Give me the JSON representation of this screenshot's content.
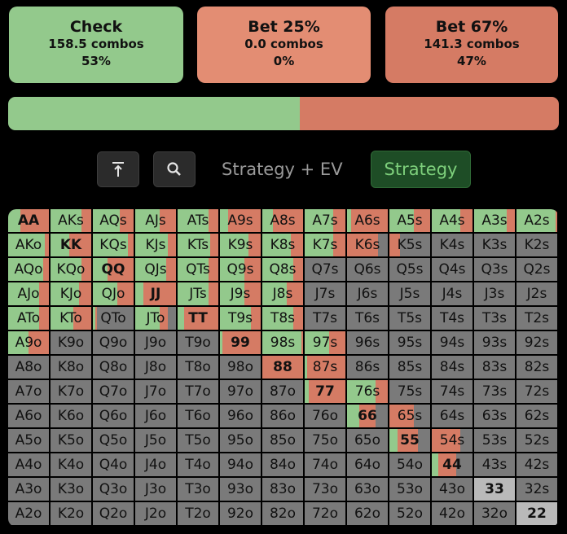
{
  "colors": {
    "check": "#93c98c",
    "bet25": "#e38d73",
    "bet67": "#d57b64",
    "fold": "#7a7a7a",
    "pairLight": "#b9b9b9"
  },
  "actions": [
    {
      "name": "Check",
      "combos": "158.5 combos",
      "pct": "53%"
    },
    {
      "name": "Bet 25%",
      "combos": "0.0 combos",
      "pct": "0%"
    },
    {
      "name": "Bet 67%",
      "combos": "141.3 combos",
      "pct": "47%"
    }
  ],
  "frequency_bar": {
    "check": 0.53,
    "bet25": 0.0,
    "bet67": 0.47
  },
  "toolbar": {
    "top_icon": "arrow-to-top-icon",
    "zoom_icon": "magnifier-icon",
    "mode_label": "Strategy + EV",
    "strategy_label": "Strategy"
  },
  "ranks": [
    "A",
    "K",
    "Q",
    "J",
    "T",
    "9",
    "8",
    "7",
    "6",
    "5",
    "4",
    "3",
    "2"
  ],
  "hand_matrix": [
    [
      [
        0.3,
        0.7,
        0
      ],
      [
        0.75,
        0.25,
        0
      ],
      [
        0.65,
        0.35,
        0
      ],
      [
        0.6,
        0.4,
        0
      ],
      [
        0.75,
        0.25,
        0
      ],
      [
        0.2,
        0.8,
        0
      ],
      [
        0.25,
        0.75,
        0
      ],
      [
        0.7,
        0.3,
        0
      ],
      [
        0.1,
        0.9,
        0
      ],
      [
        0.6,
        0.4,
        0
      ],
      [
        0.7,
        0.3,
        0
      ],
      [
        0.8,
        0.2,
        0
      ],
      [
        0.95,
        0.05,
        0
      ]
    ],
    [
      [
        0.9,
        0.1,
        0
      ],
      [
        0.45,
        0.55,
        0
      ],
      [
        0.85,
        0.15,
        0
      ],
      [
        0.8,
        0.2,
        0
      ],
      [
        0.8,
        0.2,
        0
      ],
      [
        0.7,
        0.3,
        0
      ],
      [
        0.7,
        0.3,
        0
      ],
      [
        0.7,
        0.3,
        0
      ],
      [
        0,
        0.75,
        0.25
      ],
      [
        0,
        0.25,
        0.75
      ],
      [
        0,
        0,
        1
      ],
      [
        0,
        0,
        1
      ],
      [
        0,
        0,
        1
      ]
    ],
    [
      [
        0.85,
        0.15,
        0
      ],
      [
        0.75,
        0.25,
        0
      ],
      [
        0.35,
        0.65,
        0
      ],
      [
        0.75,
        0.25,
        0
      ],
      [
        0.75,
        0.25,
        0
      ],
      [
        0.6,
        0.4,
        0
      ],
      [
        0.75,
        0.25,
        0
      ],
      [
        0,
        0,
        1
      ],
      [
        0,
        0,
        1
      ],
      [
        0,
        0,
        1
      ],
      [
        0,
        0,
        1
      ],
      [
        0,
        0,
        1
      ],
      [
        0,
        0,
        1
      ]
    ],
    [
      [
        0.75,
        0.25,
        0
      ],
      [
        0.7,
        0.3,
        0
      ],
      [
        0.6,
        0.4,
        0
      ],
      [
        0.2,
        0.8,
        0
      ],
      [
        0.75,
        0.25,
        0
      ],
      [
        0.6,
        0.4,
        0
      ],
      [
        0.6,
        0.4,
        0
      ],
      [
        0,
        0,
        1
      ],
      [
        0,
        0,
        1
      ],
      [
        0,
        0,
        1
      ],
      [
        0,
        0,
        1
      ],
      [
        0,
        0,
        1
      ],
      [
        0,
        0,
        1
      ]
    ],
    [
      [
        0.75,
        0.25,
        0
      ],
      [
        0.55,
        0.45,
        0
      ],
      [
        0.05,
        0.05,
        0.9
      ],
      [
        0.6,
        0.2,
        0.2
      ],
      [
        0.15,
        0.85,
        0
      ],
      [
        0.75,
        0.25,
        0
      ],
      [
        0.75,
        0.25,
        0
      ],
      [
        0,
        0,
        1
      ],
      [
        0,
        0,
        1
      ],
      [
        0,
        0,
        1
      ],
      [
        0,
        0,
        1
      ],
      [
        0,
        0,
        1
      ],
      [
        0,
        0,
        1
      ]
    ],
    [
      [
        0.5,
        0.5,
        0
      ],
      [
        0,
        0,
        1
      ],
      [
        0,
        0,
        1
      ],
      [
        0,
        0,
        1
      ],
      [
        0,
        0,
        1
      ],
      [
        0.05,
        0.95,
        0
      ],
      [
        0.95,
        0.05,
        0
      ],
      [
        0.6,
        0.4,
        0
      ],
      [
        0,
        0,
        1
      ],
      [
        0,
        0,
        1
      ],
      [
        0,
        0,
        1
      ],
      [
        0,
        0,
        1
      ],
      [
        0,
        0,
        1
      ]
    ],
    [
      [
        0,
        0,
        1
      ],
      [
        0,
        0,
        1
      ],
      [
        0,
        0,
        1
      ],
      [
        0,
        0,
        1
      ],
      [
        0,
        0,
        1
      ],
      [
        0,
        0,
        1
      ],
      [
        0,
        1,
        0
      ],
      [
        0.05,
        0.95,
        0
      ],
      [
        0,
        0,
        1
      ],
      [
        0,
        0,
        1
      ],
      [
        0,
        0,
        1
      ],
      [
        0,
        0,
        1
      ],
      [
        0,
        0,
        1
      ]
    ],
    [
      [
        0,
        0,
        1
      ],
      [
        0,
        0,
        1
      ],
      [
        0,
        0,
        1
      ],
      [
        0,
        0,
        1
      ],
      [
        0,
        0,
        1
      ],
      [
        0,
        0,
        1
      ],
      [
        0,
        0,
        1
      ],
      [
        0.1,
        0.9,
        0
      ],
      [
        0.7,
        0.3,
        0
      ],
      [
        0,
        0,
        1
      ],
      [
        0,
        0,
        1
      ],
      [
        0,
        0,
        1
      ],
      [
        0,
        0,
        1
      ]
    ],
    [
      [
        0,
        0,
        1
      ],
      [
        0,
        0,
        1
      ],
      [
        0,
        0,
        1
      ],
      [
        0,
        0,
        1
      ],
      [
        0,
        0,
        1
      ],
      [
        0,
        0,
        1
      ],
      [
        0,
        0,
        1
      ],
      [
        0,
        0,
        1
      ],
      [
        0.3,
        0.4,
        0.3
      ],
      [
        0,
        0.6,
        0.4
      ],
      [
        0,
        0,
        1
      ],
      [
        0,
        0,
        1
      ],
      [
        0,
        0,
        1
      ]
    ],
    [
      [
        0,
        0,
        1
      ],
      [
        0,
        0,
        1
      ],
      [
        0,
        0,
        1
      ],
      [
        0,
        0,
        1
      ],
      [
        0,
        0,
        1
      ],
      [
        0,
        0,
        1
      ],
      [
        0,
        0,
        1
      ],
      [
        0,
        0,
        1
      ],
      [
        0,
        0,
        1
      ],
      [
        0.2,
        0.5,
        0.3
      ],
      [
        0,
        0.7,
        0.3
      ],
      [
        0,
        0,
        1
      ],
      [
        0,
        0,
        1
      ]
    ],
    [
      [
        0,
        0,
        1
      ],
      [
        0,
        0,
        1
      ],
      [
        0,
        0,
        1
      ],
      [
        0,
        0,
        1
      ],
      [
        0,
        0,
        1
      ],
      [
        0,
        0,
        1
      ],
      [
        0,
        0,
        1
      ],
      [
        0,
        0,
        1
      ],
      [
        0,
        0,
        1
      ],
      [
        0,
        0,
        1
      ],
      [
        0.15,
        0.45,
        0.4
      ],
      [
        0,
        0,
        1
      ],
      [
        0,
        0,
        1
      ]
    ],
    [
      [
        0,
        0,
        1
      ],
      [
        0,
        0,
        1
      ],
      [
        0,
        0,
        1
      ],
      [
        0,
        0,
        1
      ],
      [
        0,
        0,
        1
      ],
      [
        0,
        0,
        1
      ],
      [
        0,
        0,
        1
      ],
      [
        0,
        0,
        1
      ],
      [
        0,
        0,
        1
      ],
      [
        0,
        0,
        1
      ],
      [
        0,
        0,
        1
      ],
      [
        0,
        0,
        1
      ],
      [
        0,
        0,
        1
      ]
    ],
    [
      [
        0,
        0,
        1
      ],
      [
        0,
        0,
        1
      ],
      [
        0,
        0,
        1
      ],
      [
        0,
        0,
        1
      ],
      [
        0,
        0,
        1
      ],
      [
        0,
        0,
        1
      ],
      [
        0,
        0,
        1
      ],
      [
        0,
        0,
        1
      ],
      [
        0,
        0,
        1
      ],
      [
        0,
        0,
        1
      ],
      [
        0,
        0,
        1
      ],
      [
        0,
        0,
        1
      ],
      [
        0,
        0,
        1
      ]
    ]
  ]
}
